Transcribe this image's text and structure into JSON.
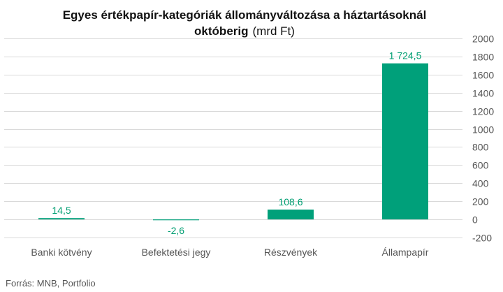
{
  "chart_data": {
    "type": "bar",
    "title": "Egyes értékpapír-kategóriák állományváltozása a háztartásoknál októberig",
    "title_line1": "Egyes értékpapír-kategóriák állományváltozása a háztartásoknál",
    "title_line2": "októberig",
    "unit": "(mrd Ft)",
    "categories": [
      "Banki kötvény",
      "Befektetési jegy",
      "Részvények",
      "Állampapír"
    ],
    "values": [
      14.5,
      -2.6,
      108.6,
      1724.5
    ],
    "data_labels": [
      "14,5",
      "-2,6",
      "108,6",
      "1 724,5"
    ],
    "ylim": [
      -200,
      2000
    ],
    "yticks": [
      -200,
      0,
      200,
      400,
      600,
      800,
      1000,
      1200,
      1400,
      1600,
      1800,
      2000
    ],
    "yaxis_side": "right",
    "grid": true,
    "legend": "none",
    "bar_color": "#00a07a",
    "label_color": "#009e72"
  },
  "source": "Forrás: MNB, Portfolio"
}
